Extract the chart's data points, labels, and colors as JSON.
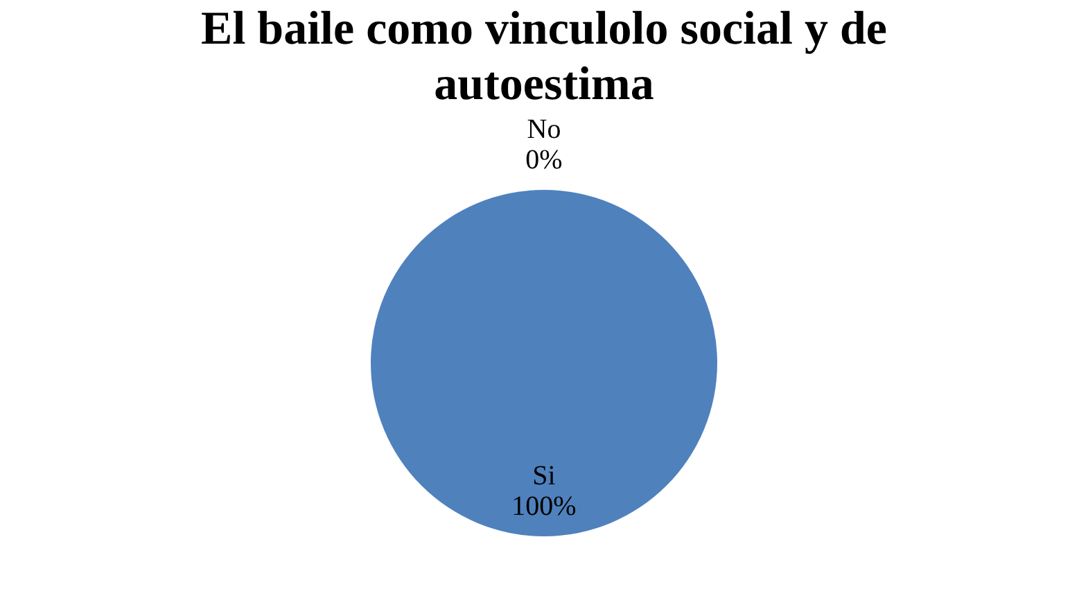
{
  "chart_data": {
    "type": "pie",
    "title": "El baile como vinculolo social y de autoestima",
    "categories": [
      "Si",
      "No"
    ],
    "values": [
      100,
      0
    ],
    "colors": [
      "#4f81bd",
      "#c0504d"
    ],
    "value_labels": [
      "100%",
      "0%"
    ],
    "legend": false
  }
}
